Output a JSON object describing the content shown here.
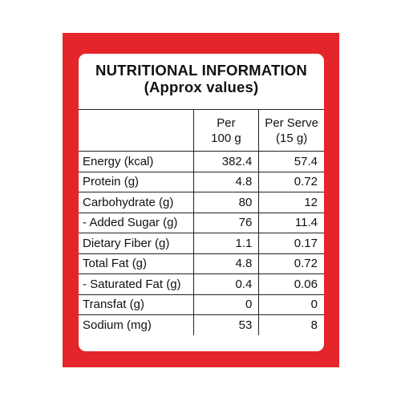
{
  "panel": {
    "title_line1": "NUTRITIONAL INFORMATION",
    "title_line2": "(Approx values)"
  },
  "table": {
    "headers": [
      {
        "line1": "",
        "line2": ""
      },
      {
        "line1": "Per",
        "line2": "100 g"
      },
      {
        "line1": "Per Serve",
        "line2": "(15 g)"
      }
    ],
    "rows": [
      {
        "name": "Energy (kcal)",
        "per100": "382.4",
        "perServe": "57.4"
      },
      {
        "name": "Protein (g)",
        "per100": "4.8",
        "perServe": "0.72"
      },
      {
        "name": "Carbohydrate (g)",
        "per100": "80",
        "perServe": "12"
      },
      {
        "name": "- Added Sugar (g)",
        "per100": "76",
        "perServe": "11.4"
      },
      {
        "name": "Dietary Fiber (g)",
        "per100": "1.1",
        "perServe": "0.17"
      },
      {
        "name": "Total Fat (g)",
        "per100": "4.8",
        "perServe": "0.72"
      },
      {
        "name": "- Saturated Fat (g)",
        "per100": "0.4",
        "perServe": "0.06"
      },
      {
        "name": "Transfat (g)",
        "per100": "0",
        "perServe": "0"
      },
      {
        "name": "Sodium (mg)",
        "per100": "53",
        "perServe": "8"
      }
    ]
  },
  "colors": {
    "border_red": "#e4262a",
    "text": "#111111"
  }
}
